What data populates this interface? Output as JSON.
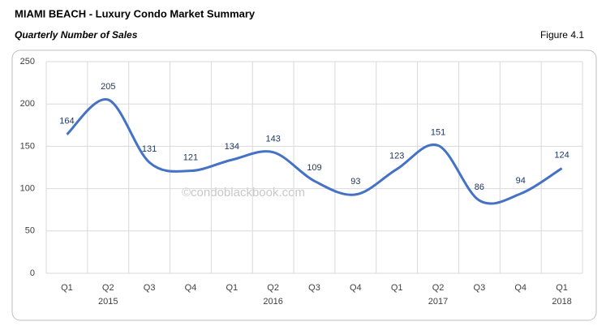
{
  "chart_data": {
    "type": "line",
    "title": "MIAMI BEACH - Luxury Condo Market Summary",
    "subtitle": "Quarterly Number of Sales",
    "figure": "Figure 4.1",
    "watermark": "©condoblackbook.com",
    "categories": [
      "Q1",
      "Q2",
      "Q3",
      "Q4",
      "Q1",
      "Q2",
      "Q3",
      "Q4",
      "Q1",
      "Q2",
      "Q3",
      "Q4",
      "Q1"
    ],
    "years": [
      null,
      "2015",
      null,
      null,
      null,
      "2016",
      null,
      null,
      null,
      "2017",
      null,
      null,
      "2018"
    ],
    "values": [
      164,
      205,
      131,
      121,
      134,
      143,
      109,
      93,
      123,
      151,
      86,
      94,
      124
    ],
    "color": "#4472c4",
    "ylim": [
      0,
      250
    ],
    "yticks": [
      0,
      50,
      100,
      150,
      200,
      250
    ],
    "grid": true
  }
}
